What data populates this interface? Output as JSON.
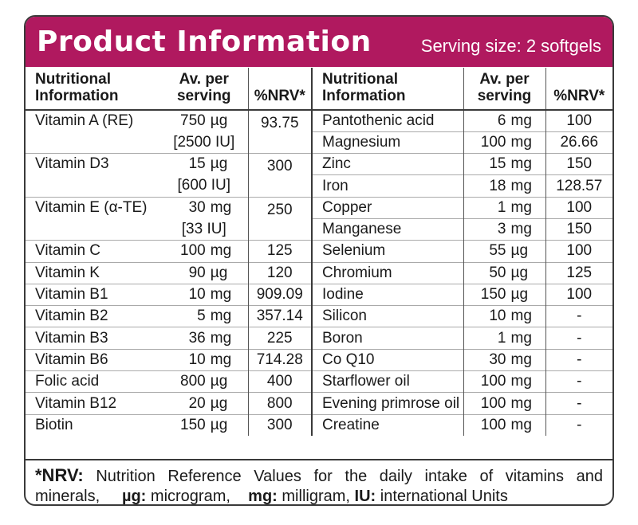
{
  "header": {
    "title": "Product Information",
    "serving": "Serving size: 2 softgels"
  },
  "columns": {
    "nutr": "Nutritional Information",
    "serv": "Av. per serving",
    "nrv": "%NRV*"
  },
  "left": [
    {
      "name": "Vitamin A (RE)",
      "amt": "750",
      "unit": "µg",
      "iu": "[2500 IU]",
      "nrv": "93.75"
    },
    {
      "name": "Vitamin D3",
      "amt": "15",
      "unit": "µg",
      "iu": "[600 IU]",
      "nrv": "300"
    },
    {
      "name": "Vitamin E (α-TE)",
      "amt": "30",
      "unit": "mg",
      "iu": "[33 IU]",
      "nrv": "250"
    },
    {
      "name": "Vitamin C",
      "amt": "100",
      "unit": "mg",
      "nrv": "125"
    },
    {
      "name": "Vitamin K",
      "amt": "90",
      "unit": "µg",
      "nrv": "120"
    },
    {
      "name": "Vitamin B1",
      "amt": "10",
      "unit": "mg",
      "nrv": "909.09"
    },
    {
      "name": "Vitamin B2",
      "amt": "5",
      "unit": "mg",
      "nrv": "357.14"
    },
    {
      "name": "Vitamin B3",
      "amt": "36",
      "unit": "mg",
      "nrv": "225"
    },
    {
      "name": "Vitamin B6",
      "amt": "10",
      "unit": "mg",
      "nrv": "714.28"
    },
    {
      "name": "Folic acid",
      "amt": "800",
      "unit": "µg",
      "nrv": "400"
    },
    {
      "name": "Vitamin B12",
      "amt": "20",
      "unit": "µg",
      "nrv": "800"
    },
    {
      "name": "Biotin",
      "amt": "150",
      "unit": "µg",
      "nrv": "300"
    }
  ],
  "right": [
    {
      "name": "Pantothenic acid",
      "amt": "6",
      "unit": "mg",
      "nrv": "100"
    },
    {
      "name": "Magnesium",
      "amt": "100",
      "unit": "mg",
      "nrv": "26.66"
    },
    {
      "name": "Zinc",
      "amt": "15",
      "unit": "mg",
      "nrv": "150"
    },
    {
      "name": "Iron",
      "amt": "18",
      "unit": "mg",
      "nrv": "128.57"
    },
    {
      "name": "Copper",
      "amt": "1",
      "unit": "mg",
      "nrv": "100"
    },
    {
      "name": "Manganese",
      "amt": "3",
      "unit": "mg",
      "nrv": "150"
    },
    {
      "name": "Selenium",
      "amt": "55",
      "unit": "µg",
      "nrv": "100"
    },
    {
      "name": "Chromium",
      "amt": "50",
      "unit": "µg",
      "nrv": "125"
    },
    {
      "name": "Iodine",
      "amt": "150",
      "unit": "µg",
      "nrv": "100"
    },
    {
      "name": "Silicon",
      "amt": "10",
      "unit": "mg",
      "nrv": "-"
    },
    {
      "name": "Boron",
      "amt": "1",
      "unit": "mg",
      "nrv": "-"
    },
    {
      "name": "Co Q10",
      "amt": "30",
      "unit": "mg",
      "nrv": "-"
    },
    {
      "name": "Starflower oil",
      "amt": "100",
      "unit": "mg",
      "nrv": "-"
    },
    {
      "name": "Evening primrose oil",
      "amt": "100",
      "unit": "mg",
      "nrv": "-"
    },
    {
      "name": "Creatine",
      "amt": "100",
      "unit": "mg",
      "nrv": "-"
    }
  ],
  "footer": {
    "nrv_key": "*NRV:",
    "nrv_text": "Nutrition Reference Values for the daily intake of vitamins and minerals,",
    "ug_key": "µg:",
    "ug_text": "microgram,",
    "mg_key": "mg:",
    "mg_text": "milligram,",
    "iu_key": "IU:",
    "iu_text": "international Units"
  }
}
